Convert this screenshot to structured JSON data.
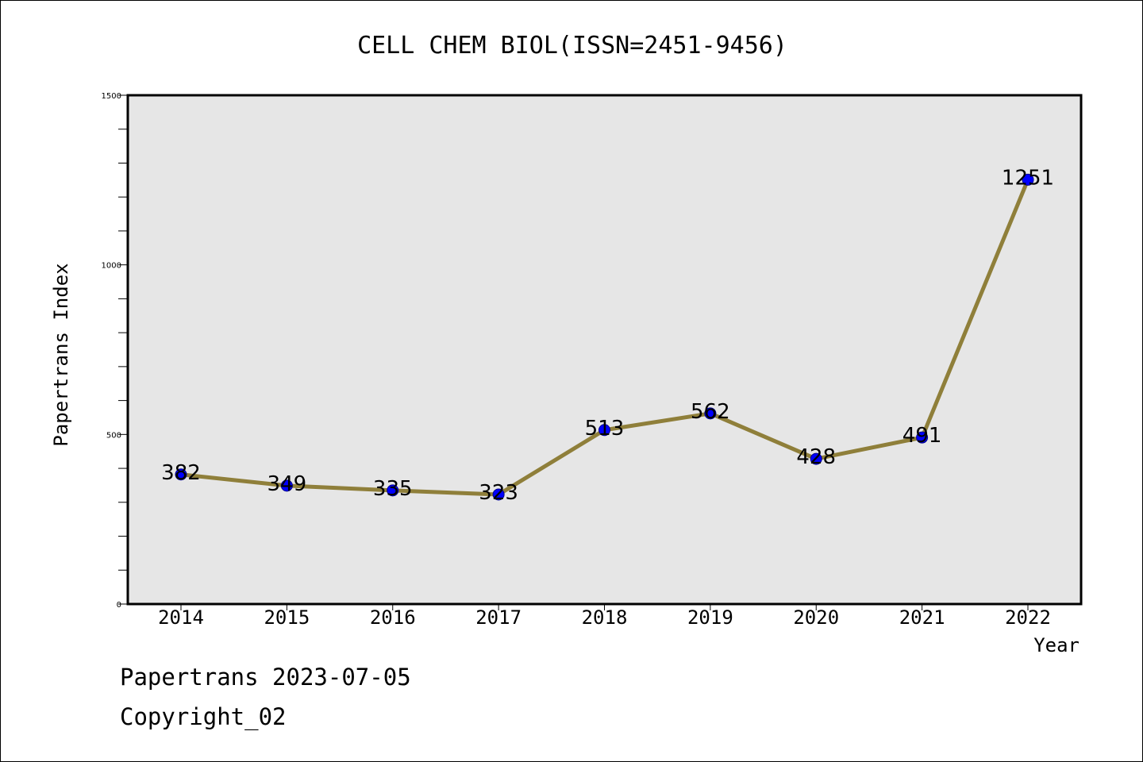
{
  "chart_data": {
    "type": "line",
    "title": "CELL CHEM BIOL(ISSN=2451-9456)",
    "xlabel": "Year",
    "ylabel": "Papertrans Index",
    "categories": [
      "2014",
      "2015",
      "2016",
      "2017",
      "2018",
      "2019",
      "2020",
      "2021",
      "2022"
    ],
    "series": [
      {
        "values": [
          382,
          349,
          335,
          323,
          513,
          562,
          428,
          491,
          1251
        ]
      }
    ],
    "data_labels": [
      "382",
      "349",
      "335",
      "323",
      "513",
      "562",
      "428",
      "491",
      "1251"
    ],
    "ylim": [
      0,
      1500
    ],
    "yticks_major": [
      0,
      500,
      1000,
      1500
    ],
    "ytick_labels": [
      "0",
      "500",
      "1000",
      "1500"
    ],
    "yticks_minor_step": 100,
    "grid": false,
    "legend": "none",
    "colors": {
      "plot_background": "#e6e6e6",
      "line": "#8f7f3a",
      "marker": "#0000ff"
    }
  },
  "footer": {
    "source_line": "Papertrans 2023-07-05",
    "copyright_line": "Copyright_02"
  }
}
